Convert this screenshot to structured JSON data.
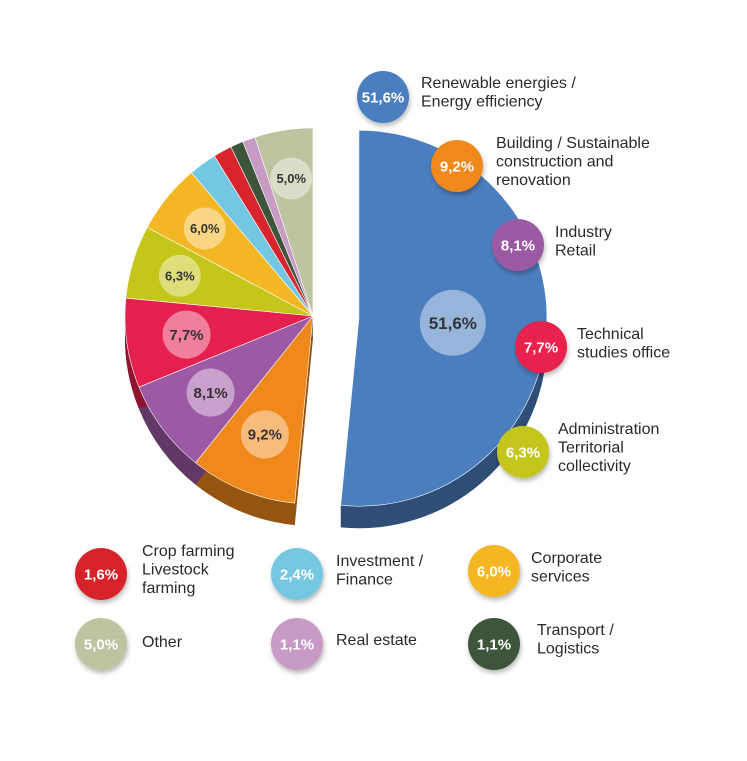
{
  "chart_data": {
    "type": "pie",
    "slices": [
      {
        "label": [
          "Renewable energies /",
          "Energy efficiency"
        ],
        "value": 51.6,
        "display": "51,6%",
        "color": "#4a7ebf",
        "exploded": true
      },
      {
        "label": [
          "Building / Sustainable",
          "construction and",
          "renovation"
        ],
        "value": 9.2,
        "display": "9,2%",
        "color": "#f0891c"
      },
      {
        "label": [
          "Industry",
          "Retail"
        ],
        "value": 8.1,
        "display": "8,1%",
        "color": "#9c5aa4"
      },
      {
        "label": [
          "Technical",
          "studies office"
        ],
        "value": 7.7,
        "display": "7,7%",
        "color": "#e6204e"
      },
      {
        "label": [
          "Administration",
          "Territorial",
          "collectivity"
        ],
        "value": 6.3,
        "display": "6,3%",
        "color": "#c4c61a"
      },
      {
        "label": [
          "Corporate",
          "services"
        ],
        "value": 6.0,
        "display": "6,0%",
        "color": "#f4b724"
      },
      {
        "label": [
          "Investment /",
          "Finance"
        ],
        "value": 2.4,
        "display": "2,4%",
        "color": "#74c7e2"
      },
      {
        "label": [
          "Crop farming",
          "Livestock",
          "farming"
        ],
        "value": 1.6,
        "display": "1,6%",
        "color": "#d8242c"
      },
      {
        "label": [
          "Transport /",
          "Logistics"
        ],
        "value": 1.1,
        "display": "1,1%",
        "color": "#3d553a"
      },
      {
        "label": [
          "Real estate"
        ],
        "value": 1.1,
        "display": "1,1%",
        "color": "#c89ac6"
      },
      {
        "label": [
          "Other"
        ],
        "value": 5.0,
        "display": "5,0%",
        "color": "#bdc4a0"
      }
    ],
    "inner_labels_shown_for": [
      "51,6%",
      "9,2%",
      "8,1%",
      "7,7%",
      "6,3%",
      "6,0%",
      "5,0%"
    ],
    "legend_placement": "right and bottom"
  }
}
